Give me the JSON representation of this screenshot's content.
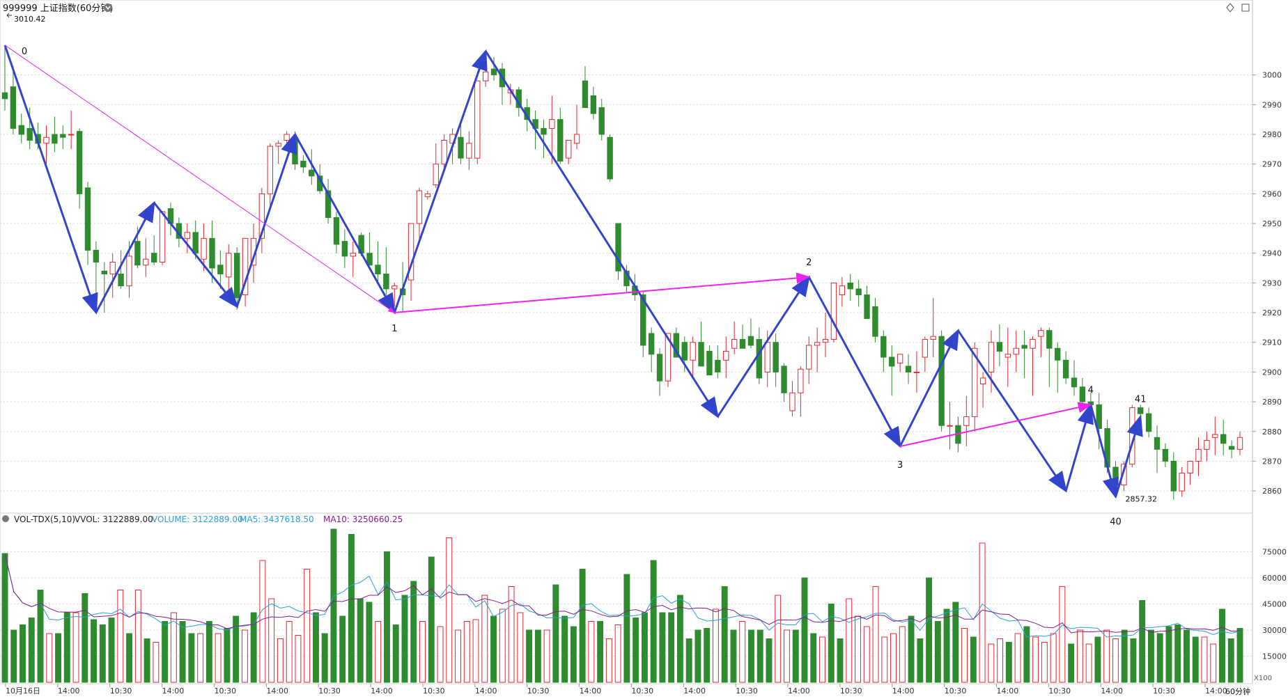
{
  "header": {
    "symbol_title": "999999 上证指数(60分钟)",
    "top_value_label": "3010.42",
    "period_label": "60分钟",
    "volume_multiplier": "X100"
  },
  "indicator": {
    "name": "VOL-TDX(5,10)",
    "vvol": "VVOL: 3122889.00",
    "volume": "VOLUME: 3122889.00",
    "ma5": "MA5: 3437618.50",
    "ma10": "MA10: 3250660.25"
  },
  "colors": {
    "up": "#e8262d",
    "down": "#2e8b2e",
    "wave": "#3344cc",
    "trend": "#ee22ee",
    "volume_line": "#2a9fd8",
    "ma10_line": "#8b1a8b",
    "grid": "#d7d7d7"
  },
  "chart_data": [
    {
      "type": "candlestick",
      "title": "999999 上证指数(60分钟)",
      "yaxis": {
        "ticks": [
          2860,
          2870,
          2880,
          2890,
          2900,
          2910,
          2920,
          2930,
          2940,
          2950,
          2960,
          2970,
          2980,
          2990,
          3000
        ],
        "range": [
          2853,
          3021
        ]
      },
      "x_time_labels": [
        "10月16日",
        "14:00",
        "10:30",
        "14:00",
        "10:30",
        "14:00",
        "10:30",
        "14:00",
        "10:30",
        "14:00",
        "10:30",
        "14:00",
        "10:30",
        "14:00",
        "10:30",
        "14:00",
        "10:30",
        "14:00",
        "10:30",
        "14:00",
        "10:30",
        "14:00",
        "10:30",
        "14:00"
      ],
      "candles_ohlc": [
        [
          2994,
          3010,
          2988,
          2992
        ],
        [
          2996,
          3003,
          2980,
          2982
        ],
        [
          2983,
          2987,
          2977,
          2980
        ],
        [
          2982,
          2989,
          2975,
          2978
        ],
        [
          2980,
          2984,
          2975,
          2977
        ],
        [
          2977,
          2983,
          2970,
          2979
        ],
        [
          2980,
          2986,
          2974,
          2977
        ],
        [
          2980,
          2983,
          2975,
          2979
        ],
        [
          2980,
          2988,
          2975,
          2980
        ],
        [
          2981,
          2982,
          2955,
          2960
        ],
        [
          2962,
          2964,
          2936,
          2941
        ],
        [
          2941,
          2944,
          2925,
          2937
        ],
        [
          2934,
          2937,
          2920,
          2933
        ],
        [
          2933,
          2940,
          2925,
          2937
        ],
        [
          2933,
          2941,
          2928,
          2929
        ],
        [
          2929,
          2944,
          2925,
          2939
        ],
        [
          2944,
          2949,
          2935,
          2936
        ],
        [
          2936,
          2945,
          2932,
          2938
        ],
        [
          2940,
          2946,
          2936,
          2937
        ],
        [
          2937,
          2953,
          2936,
          2954
        ],
        [
          2955,
          2957,
          2946,
          2950
        ],
        [
          2950,
          2952,
          2942,
          2945
        ],
        [
          2945,
          2950,
          2940,
          2947
        ],
        [
          2947,
          2951,
          2938,
          2940
        ],
        [
          2938,
          2950,
          2934,
          2945
        ],
        [
          2945,
          2951,
          2930,
          2935
        ],
        [
          2936,
          2941,
          2928,
          2933
        ],
        [
          2932,
          2943,
          2924,
          2940
        ],
        [
          2940,
          2942,
          2921,
          2925
        ],
        [
          2926,
          2943,
          2922,
          2945
        ],
        [
          2936,
          2950,
          2930,
          2945
        ],
        [
          2945,
          2962,
          2940,
          2960
        ],
        [
          2960,
          2977,
          2955,
          2976
        ],
        [
          2976,
          2978,
          2970,
          2977
        ],
        [
          2978,
          2981,
          2975,
          2980
        ],
        [
          2979,
          2981,
          2968,
          2970
        ],
        [
          2971,
          2973,
          2967,
          2969
        ],
        [
          2968,
          2975,
          2963,
          2966
        ],
        [
          2966,
          2970,
          2960,
          2961
        ],
        [
          2961,
          2965,
          2950,
          2952
        ],
        [
          2952,
          2954,
          2940,
          2943
        ],
        [
          2944,
          2948,
          2935,
          2939
        ],
        [
          2939,
          2944,
          2932,
          2940
        ],
        [
          2946,
          2947,
          2939,
          2940
        ],
        [
          2940,
          2947,
          2936,
          2936
        ],
        [
          2936,
          2944,
          2930,
          2933
        ],
        [
          2933,
          2942,
          2926,
          2928
        ],
        [
          2928,
          2930,
          2922,
          2929
        ],
        [
          2928,
          2937,
          2920,
          2926
        ],
        [
          2931,
          2942,
          2924,
          2950
        ],
        [
          2950,
          2962,
          2945,
          2961
        ],
        [
          2959,
          2961,
          2958,
          2960
        ],
        [
          2963,
          2977,
          2962,
          2970
        ],
        [
          2970,
          2980,
          2968,
          2978
        ],
        [
          2977,
          2982,
          2970,
          2980
        ],
        [
          2979,
          2984,
          2970,
          2972
        ],
        [
          2972,
          2981,
          2968,
          2977
        ],
        [
          2972,
          2995,
          2970,
          2998
        ],
        [
          2998,
          3008,
          2996,
          3001
        ],
        [
          3002,
          3006,
          2998,
          3000
        ],
        [
          3002,
          3004,
          2990,
          2996
        ],
        [
          2994,
          2997,
          2990,
          2995
        ],
        [
          2995,
          2996,
          2986,
          2989
        ],
        [
          2989,
          2992,
          2981,
          2985
        ],
        [
          2985,
          2988,
          2975,
          2982
        ],
        [
          2982,
          2985,
          2972,
          2980
        ],
        [
          2982,
          2993,
          2970,
          2985
        ],
        [
          2985,
          2989,
          2970,
          2971
        ],
        [
          2972,
          2978,
          2970,
          2978
        ],
        [
          2977,
          2990,
          2975,
          2980
        ],
        [
          2998,
          3003,
          2990,
          2989
        ],
        [
          2993,
          2996,
          2985,
          2987
        ],
        [
          2989,
          2992,
          2978,
          2980
        ],
        [
          2979,
          2980,
          2964,
          2965
        ],
        [
          2950,
          2950,
          2931,
          2934
        ],
        [
          2934,
          2936,
          2927,
          2929
        ],
        [
          2929,
          2933,
          2924,
          2926
        ],
        [
          2926,
          2927,
          2905,
          2909
        ],
        [
          2913,
          2915,
          2900,
          2906
        ],
        [
          2906,
          2908,
          2892,
          2897
        ],
        [
          2897,
          2912,
          2895,
          2913
        ],
        [
          2913,
          2915,
          2905,
          2905
        ],
        [
          2910,
          2912,
          2900,
          2904
        ],
        [
          2904,
          2912,
          2898,
          2910
        ],
        [
          2910,
          2917,
          2903,
          2902
        ],
        [
          2907,
          2909,
          2900,
          2899
        ],
        [
          2904,
          2909,
          2898,
          2900
        ],
        [
          2904,
          2912,
          2898,
          2907
        ],
        [
          2908,
          2917,
          2906,
          2911
        ],
        [
          2911,
          2916,
          2908,
          2908
        ],
        [
          2912,
          2918,
          2908,
          2909
        ],
        [
          2911,
          2915,
          2896,
          2898
        ],
        [
          2900,
          2914,
          2895,
          2910
        ],
        [
          2910,
          2913,
          2895,
          2900
        ],
        [
          2902,
          2903,
          2890,
          2893
        ],
        [
          2887,
          2897,
          2885,
          2893
        ],
        [
          2893,
          2902,
          2885,
          2901
        ],
        [
          2901,
          2912,
          2896,
          2909
        ],
        [
          2909,
          2915,
          2900,
          2910
        ],
        [
          2910,
          2920,
          2905,
          2911
        ],
        [
          2911,
          2926,
          2910,
          2930
        ],
        [
          2926,
          2932,
          2922,
          2929
        ],
        [
          2930,
          2933,
          2924,
          2928
        ],
        [
          2928,
          2931,
          2922,
          2926
        ],
        [
          2926,
          2929,
          2920,
          2918
        ],
        [
          2922,
          2925,
          2910,
          2912
        ],
        [
          2912,
          2914,
          2900,
          2905
        ],
        [
          2905,
          2909,
          2892,
          2902
        ],
        [
          2903,
          2905,
          2900,
          2906
        ],
        [
          2902,
          2906,
          2896,
          2900
        ],
        [
          2900,
          2907,
          2893,
          2900
        ],
        [
          2905,
          2912,
          2900,
          2911
        ],
        [
          2911,
          2925,
          2905,
          2912
        ],
        [
          2912,
          2914,
          2880,
          2882
        ],
        [
          2882,
          2890,
          2874,
          2882
        ],
        [
          2882,
          2885,
          2873,
          2876
        ],
        [
          2882,
          2892,
          2875,
          2885
        ],
        [
          2885,
          2910,
          2880,
          2908
        ],
        [
          2896,
          2900,
          2888,
          2898
        ],
        [
          2900,
          2914,
          2893,
          2910
        ],
        [
          2910,
          2916,
          2902,
          2907
        ],
        [
          2905,
          2915,
          2895,
          2906
        ],
        [
          2906,
          2914,
          2900,
          2908
        ],
        [
          2909,
          2914,
          2898,
          2908
        ],
        [
          2908,
          2912,
          2892,
          2911
        ],
        [
          2912,
          2915,
          2905,
          2914
        ],
        [
          2914,
          2915,
          2895,
          2908
        ],
        [
          2908,
          2910,
          2893,
          2904
        ],
        [
          2904,
          2907,
          2896,
          2898
        ],
        [
          2898,
          2904,
          2892,
          2895
        ],
        [
          2895,
          2898,
          2888,
          2890
        ],
        [
          2890,
          2893,
          2885,
          2889
        ],
        [
          2889,
          2893,
          2874,
          2881
        ],
        [
          2881,
          2884,
          2866,
          2868
        ],
        [
          2868,
          2870,
          2860,
          2862
        ],
        [
          2862,
          2870,
          2860,
          2869
        ],
        [
          2869,
          2889,
          2868,
          2888
        ],
        [
          2888,
          2889,
          2880,
          2886
        ],
        [
          2886,
          2888,
          2878,
          2880
        ],
        [
          2878,
          2882,
          2866,
          2874
        ],
        [
          2874,
          2876,
          2868,
          2870
        ],
        [
          2870,
          2873,
          2857,
          2860
        ],
        [
          2860,
          2868,
          2858,
          2866
        ],
        [
          2866,
          2870,
          2862,
          2870
        ],
        [
          2870,
          2878,
          2865,
          2874
        ],
        [
          2874,
          2880,
          2870,
          2877
        ],
        [
          2878,
          2885,
          2872,
          2879
        ],
        [
          2879,
          2884,
          2872,
          2876
        ],
        [
          2875,
          2877,
          2871,
          2874
        ],
        [
          2874,
          2880,
          2872,
          2878
        ]
      ],
      "annotations": {
        "high": "3010.42",
        "low": "2857.32",
        "wave_labels": [
          "0",
          "1",
          "2",
          "3",
          "4",
          "40",
          "41"
        ]
      }
    },
    {
      "type": "bar",
      "title": "VOL-TDX(5,10)",
      "yaxis": {
        "ticks": [
          15000,
          30000,
          45000,
          60000,
          75000
        ],
        "max": 88000
      },
      "volumes": [
        74000,
        30000,
        33000,
        37000,
        53000,
        28000,
        28000,
        40000,
        40000,
        51000,
        36000,
        33000,
        37000,
        53000,
        28000,
        53000,
        25000,
        23000,
        35000,
        40000,
        35000,
        28000,
        28000,
        35000,
        28000,
        31000,
        38000,
        30000,
        40000,
        70000,
        48000,
        25000,
        35000,
        27000,
        65000,
        40000,
        28000,
        88000,
        38000,
        85000,
        48000,
        46000,
        35000,
        75000,
        33000,
        50000,
        58000,
        35000,
        72000,
        32000,
        83000,
        30000,
        35000,
        36000,
        50000,
        38000,
        42000,
        55000,
        40000,
        30000,
        30000,
        30000,
        56000,
        38000,
        32000,
        65000,
        35000,
        35000,
        25000,
        33000,
        62000,
        37000,
        40000,
        70000,
        40000,
        40000,
        50000,
        25000,
        30000,
        31000,
        42000,
        55000,
        30000,
        35000,
        30000,
        30000,
        25000,
        50000,
        30000,
        30000,
        60000,
        28000,
        26000,
        45000,
        25000,
        48000,
        38000,
        32000,
        55000,
        26000,
        28000,
        32000,
        38000,
        25000,
        60000,
        35000,
        42000,
        46000,
        31000,
        26000,
        80000,
        22000,
        25000,
        23000,
        28000,
        32000,
        26000,
        23000,
        28000,
        55000,
        22000,
        30000,
        22000,
        26000,
        30000,
        25000,
        30000,
        25000,
        47000,
        30000,
        28000,
        32000,
        33000,
        30000,
        26000,
        26000,
        22000,
        42000,
        25000,
        31000
      ],
      "ma_lines": [
        "VOLUME",
        "MA5",
        "MA10"
      ]
    }
  ]
}
